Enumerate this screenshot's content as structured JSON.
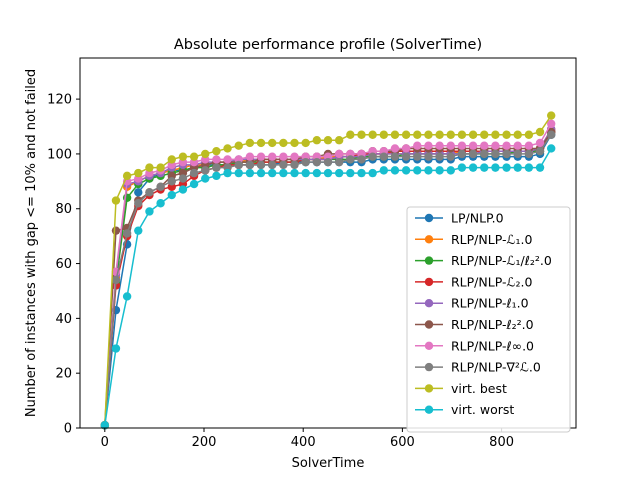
{
  "chart_data": {
    "type": "line",
    "title": "Absolute performance profile (SolverTime)",
    "xlabel": "SolverTime",
    "ylabel": "Number of instances with gap <= 10% and not failed",
    "xlim": [
      -50,
      950
    ],
    "ylim": [
      0,
      135
    ],
    "xticks": [
      0,
      200,
      400,
      600,
      800
    ],
    "yticks": [
      0,
      20,
      40,
      60,
      80,
      100,
      120
    ],
    "legend_position": "lower-right",
    "grid": false,
    "marker": "circle",
    "x": [
      0,
      22.5,
      45,
      67.5,
      90,
      112.5,
      135,
      157.5,
      180,
      202.5,
      225,
      247.5,
      270,
      292.5,
      315,
      337.5,
      360,
      382.5,
      405,
      427.5,
      450,
      472.5,
      495,
      517.5,
      540,
      562.5,
      585,
      607.5,
      630,
      652.5,
      675,
      697.5,
      720,
      742.5,
      765,
      787.5,
      810,
      832.5,
      855,
      877.5,
      900
    ],
    "series": [
      {
        "name": "LP/NLP.0",
        "color": "#1f77b4",
        "values": [
          1,
          43,
          67,
          86,
          91,
          93,
          94,
          94,
          95,
          96,
          96,
          96,
          96,
          96,
          96,
          96,
          97,
          97,
          97,
          97,
          97,
          97,
          97,
          97,
          98,
          98,
          98,
          98,
          98,
          98,
          98,
          98,
          99,
          99,
          99,
          99,
          99,
          99,
          99,
          100,
          107
        ]
      },
      {
        "name": "RLP/NLP-ℒ₁.0",
        "color": "#ff7f0e",
        "values": [
          1,
          55,
          88,
          90,
          92,
          93,
          94,
          95,
          96,
          96,
          97,
          97,
          97,
          98,
          98,
          98,
          98,
          98,
          98,
          98,
          99,
          99,
          99,
          99,
          100,
          100,
          100,
          100,
          100,
          100,
          100,
          100,
          101,
          101,
          101,
          101,
          101,
          101,
          101,
          102,
          109
        ]
      },
      {
        "name": "RLP/NLP-ℒ₁/ℓ₂².0",
        "color": "#2ca02c",
        "values": [
          1,
          53,
          84,
          89,
          91,
          92,
          93,
          94,
          95,
          95,
          96,
          96,
          97,
          97,
          97,
          97,
          97,
          97,
          98,
          98,
          98,
          98,
          98,
          99,
          99,
          99,
          99,
          100,
          100,
          100,
          100,
          100,
          100,
          100,
          100,
          100,
          100,
          101,
          101,
          101,
          108
        ]
      },
      {
        "name": "RLP/NLP-ℒ₂.0",
        "color": "#d62728",
        "values": [
          1,
          52,
          70,
          81,
          85,
          87,
          88,
          89,
          92,
          94,
          95,
          96,
          96,
          96,
          97,
          97,
          97,
          97,
          98,
          98,
          98,
          99,
          99,
          100,
          100,
          100,
          101,
          101,
          101,
          101,
          101,
          101,
          101,
          101,
          101,
          101,
          101,
          101,
          101,
          102,
          108
        ]
      },
      {
        "name": "RLP/NLP-ℓ₁.0",
        "color": "#9467bd",
        "values": [
          1,
          56,
          89,
          90,
          92,
          93,
          95,
          96,
          96,
          97,
          97,
          97,
          98,
          98,
          98,
          98,
          98,
          98,
          98,
          98,
          98,
          99,
          99,
          99,
          100,
          100,
          100,
          100,
          100,
          100,
          100,
          100,
          100,
          100,
          101,
          101,
          101,
          101,
          101,
          102,
          109
        ]
      },
      {
        "name": "RLP/NLP-ℓ₂².0",
        "color": "#8c564b",
        "values": [
          1,
          72,
          73,
          83,
          86,
          88,
          92,
          93,
          95,
          96,
          97,
          97,
          97,
          97,
          98,
          98,
          98,
          98,
          99,
          99,
          100,
          100,
          100,
          100,
          101,
          101,
          101,
          102,
          102,
          102,
          102,
          102,
          102,
          102,
          102,
          102,
          102,
          102,
          102,
          102,
          108
        ]
      },
      {
        "name": "RLP/NLP-ℓ∞.0",
        "color": "#e377c2",
        "values": [
          1,
          57,
          90,
          91,
          93,
          94,
          96,
          97,
          97,
          98,
          98,
          98,
          98,
          99,
          99,
          99,
          99,
          99,
          99,
          99,
          99,
          100,
          100,
          100,
          101,
          101,
          102,
          102,
          103,
          103,
          103,
          103,
          103,
          103,
          103,
          103,
          103,
          103,
          103,
          104,
          111
        ]
      },
      {
        "name": "RLP/NLP-∇²ℒ.0",
        "color": "#7f7f7f",
        "values": [
          1,
          54,
          71,
          82,
          86,
          88,
          90,
          91,
          93,
          94,
          95,
          95,
          96,
          96,
          96,
          96,
          96,
          96,
          97,
          97,
          97,
          97,
          98,
          98,
          99,
          99,
          99,
          99,
          99,
          99,
          99,
          99,
          100,
          100,
          100,
          100,
          100,
          100,
          100,
          101,
          107
        ]
      },
      {
        "name": "virt. best",
        "color": "#bcbd22",
        "values": [
          1,
          83,
          92,
          93,
          95,
          95,
          98,
          99,
          99,
          100,
          101,
          102,
          103,
          104,
          104,
          104,
          104,
          104,
          104,
          105,
          105,
          105,
          107,
          107,
          107,
          107,
          107,
          107,
          107,
          107,
          107,
          107,
          107,
          107,
          107,
          107,
          107,
          107,
          107,
          108,
          114
        ]
      },
      {
        "name": "virt. worst",
        "color": "#17becf",
        "values": [
          1,
          29,
          48,
          72,
          79,
          82,
          85,
          87,
          89,
          91,
          92,
          93,
          93,
          93,
          93,
          93,
          93,
          93,
          93,
          93,
          93,
          93,
          93,
          93,
          93,
          94,
          94,
          94,
          94,
          94,
          94,
          94,
          95,
          95,
          95,
          95,
          95,
          95,
          95,
          95,
          102
        ]
      }
    ]
  }
}
